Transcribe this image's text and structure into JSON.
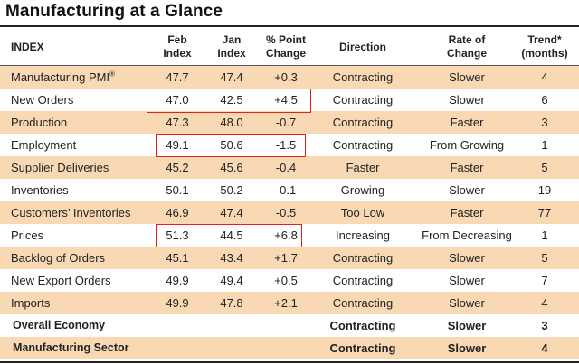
{
  "title": "Manufacturing at a Glance",
  "headers": {
    "index": "INDEX",
    "feb": [
      "Feb",
      "Index"
    ],
    "jan": [
      "Jan",
      "Index"
    ],
    "change": [
      "% Point",
      "Change"
    ],
    "direction": "Direction",
    "rate": [
      "Rate of",
      "Change"
    ],
    "trend": [
      "Trend*",
      "(months)"
    ]
  },
  "rows": [
    {
      "index": "Manufacturing PMI",
      "sup": "®",
      "feb": "47.7",
      "jan": "47.4",
      "change": "+0.3",
      "direction": "Contracting",
      "rate": "Slower",
      "trend": "4"
    },
    {
      "index": "New Orders",
      "feb": "47.0",
      "jan": "42.5",
      "change": "+4.5",
      "direction": "Contracting",
      "rate": "Slower",
      "trend": "6"
    },
    {
      "index": "Production",
      "feb": "47.3",
      "jan": "48.0",
      "change": "-0.7",
      "direction": "Contracting",
      "rate": "Faster",
      "trend": "3"
    },
    {
      "index": "Employment",
      "feb": "49.1",
      "jan": "50.6",
      "change": "-1.5",
      "direction": "Contracting",
      "rate": "From Growing",
      "trend": "1"
    },
    {
      "index": "Supplier Deliveries",
      "feb": "45.2",
      "jan": "45.6",
      "change": "-0.4",
      "direction": "Faster",
      "rate": "Faster",
      "trend": "5"
    },
    {
      "index": "Inventories",
      "feb": "50.1",
      "jan": "50.2",
      "change": "-0.1",
      "direction": "Growing",
      "rate": "Slower",
      "trend": "19"
    },
    {
      "index": "Customers’ Inventories",
      "feb": "46.9",
      "jan": "47.4",
      "change": "-0.5",
      "direction": "Too Low",
      "rate": "Faster",
      "trend": "77"
    },
    {
      "index": "Prices",
      "feb": "51.3",
      "jan": "44.5",
      "change": "+6.8",
      "direction": "Increasing",
      "rate": "From Decreasing",
      "trend": "1"
    },
    {
      "index": "Backlog of Orders",
      "feb": "45.1",
      "jan": "43.4",
      "change": "+1.7",
      "direction": "Contracting",
      "rate": "Slower",
      "trend": "5"
    },
    {
      "index": "New Export Orders",
      "feb": "49.9",
      "jan": "49.4",
      "change": "+0.5",
      "direction": "Contracting",
      "rate": "Slower",
      "trend": "7"
    },
    {
      "index": "Imports",
      "feb": "49.9",
      "jan": "47.8",
      "change": "+2.1",
      "direction": "Contracting",
      "rate": "Slower",
      "trend": "4"
    }
  ],
  "summary": [
    {
      "index": "Overall Economy",
      "direction": "Contracting",
      "rate": "Slower",
      "trend": "3"
    },
    {
      "index": "Manufacturing Sector",
      "direction": "Contracting",
      "rate": "Slower",
      "trend": "4"
    }
  ],
  "highlight_color": "#e2231a",
  "shade_color": "#f9d9b4"
}
